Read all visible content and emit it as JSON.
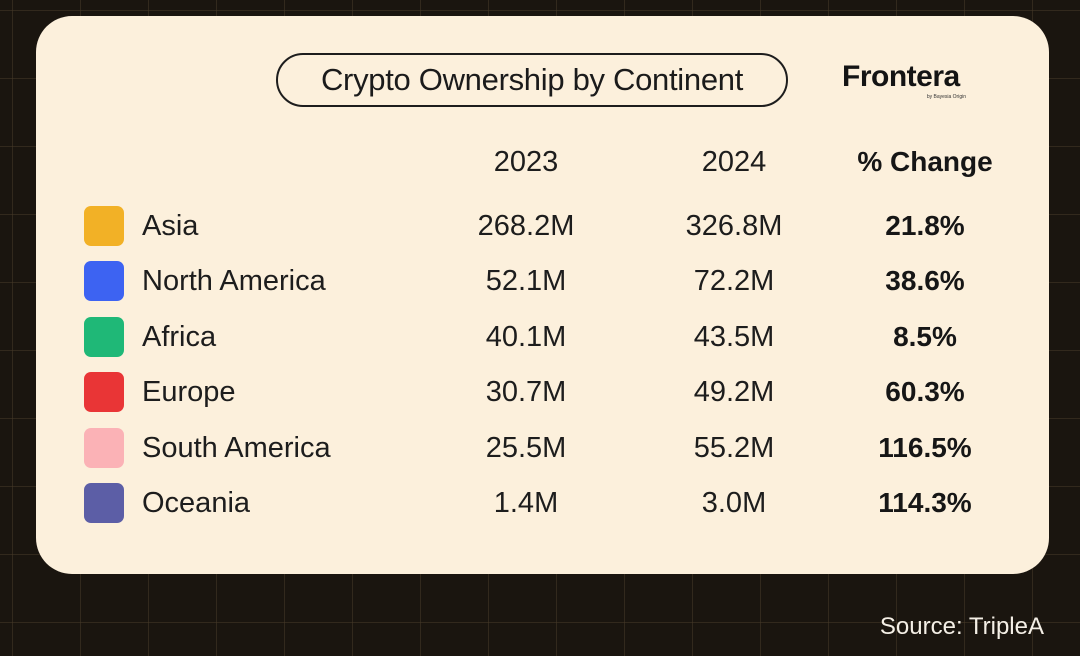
{
  "title": "Crypto Ownership by Continent",
  "brand": {
    "name": "Frontera",
    "tagline": "by Bayesia Origin"
  },
  "source": "Source: TripleA",
  "colors": {
    "Asia": "#f2b126",
    "North America": "#3d63f2",
    "Africa": "#1fb877",
    "Europe": "#e93536",
    "South America": "#fbb2b6",
    "Oceania": "#5c5ea6"
  },
  "chart_data": {
    "type": "table",
    "title": "Crypto Ownership by Continent",
    "columns": [
      "2023",
      "2024",
      "% Change"
    ],
    "rows": [
      {
        "label": "Asia",
        "values": [
          "268.2M",
          "326.8M",
          "21.8%"
        ]
      },
      {
        "label": "North America",
        "values": [
          "52.1M",
          "72.2M",
          "38.6%"
        ]
      },
      {
        "label": "Africa",
        "values": [
          "40.1M",
          "43.5M",
          "8.5%"
        ]
      },
      {
        "label": "Europe",
        "values": [
          "30.7M",
          "49.2M",
          "60.3%"
        ]
      },
      {
        "label": "South America",
        "values": [
          "25.5M",
          "55.2M",
          "116.5%"
        ]
      },
      {
        "label": "Oceania",
        "values": [
          "1.4M",
          "3.0M",
          "114.3%"
        ]
      }
    ]
  }
}
